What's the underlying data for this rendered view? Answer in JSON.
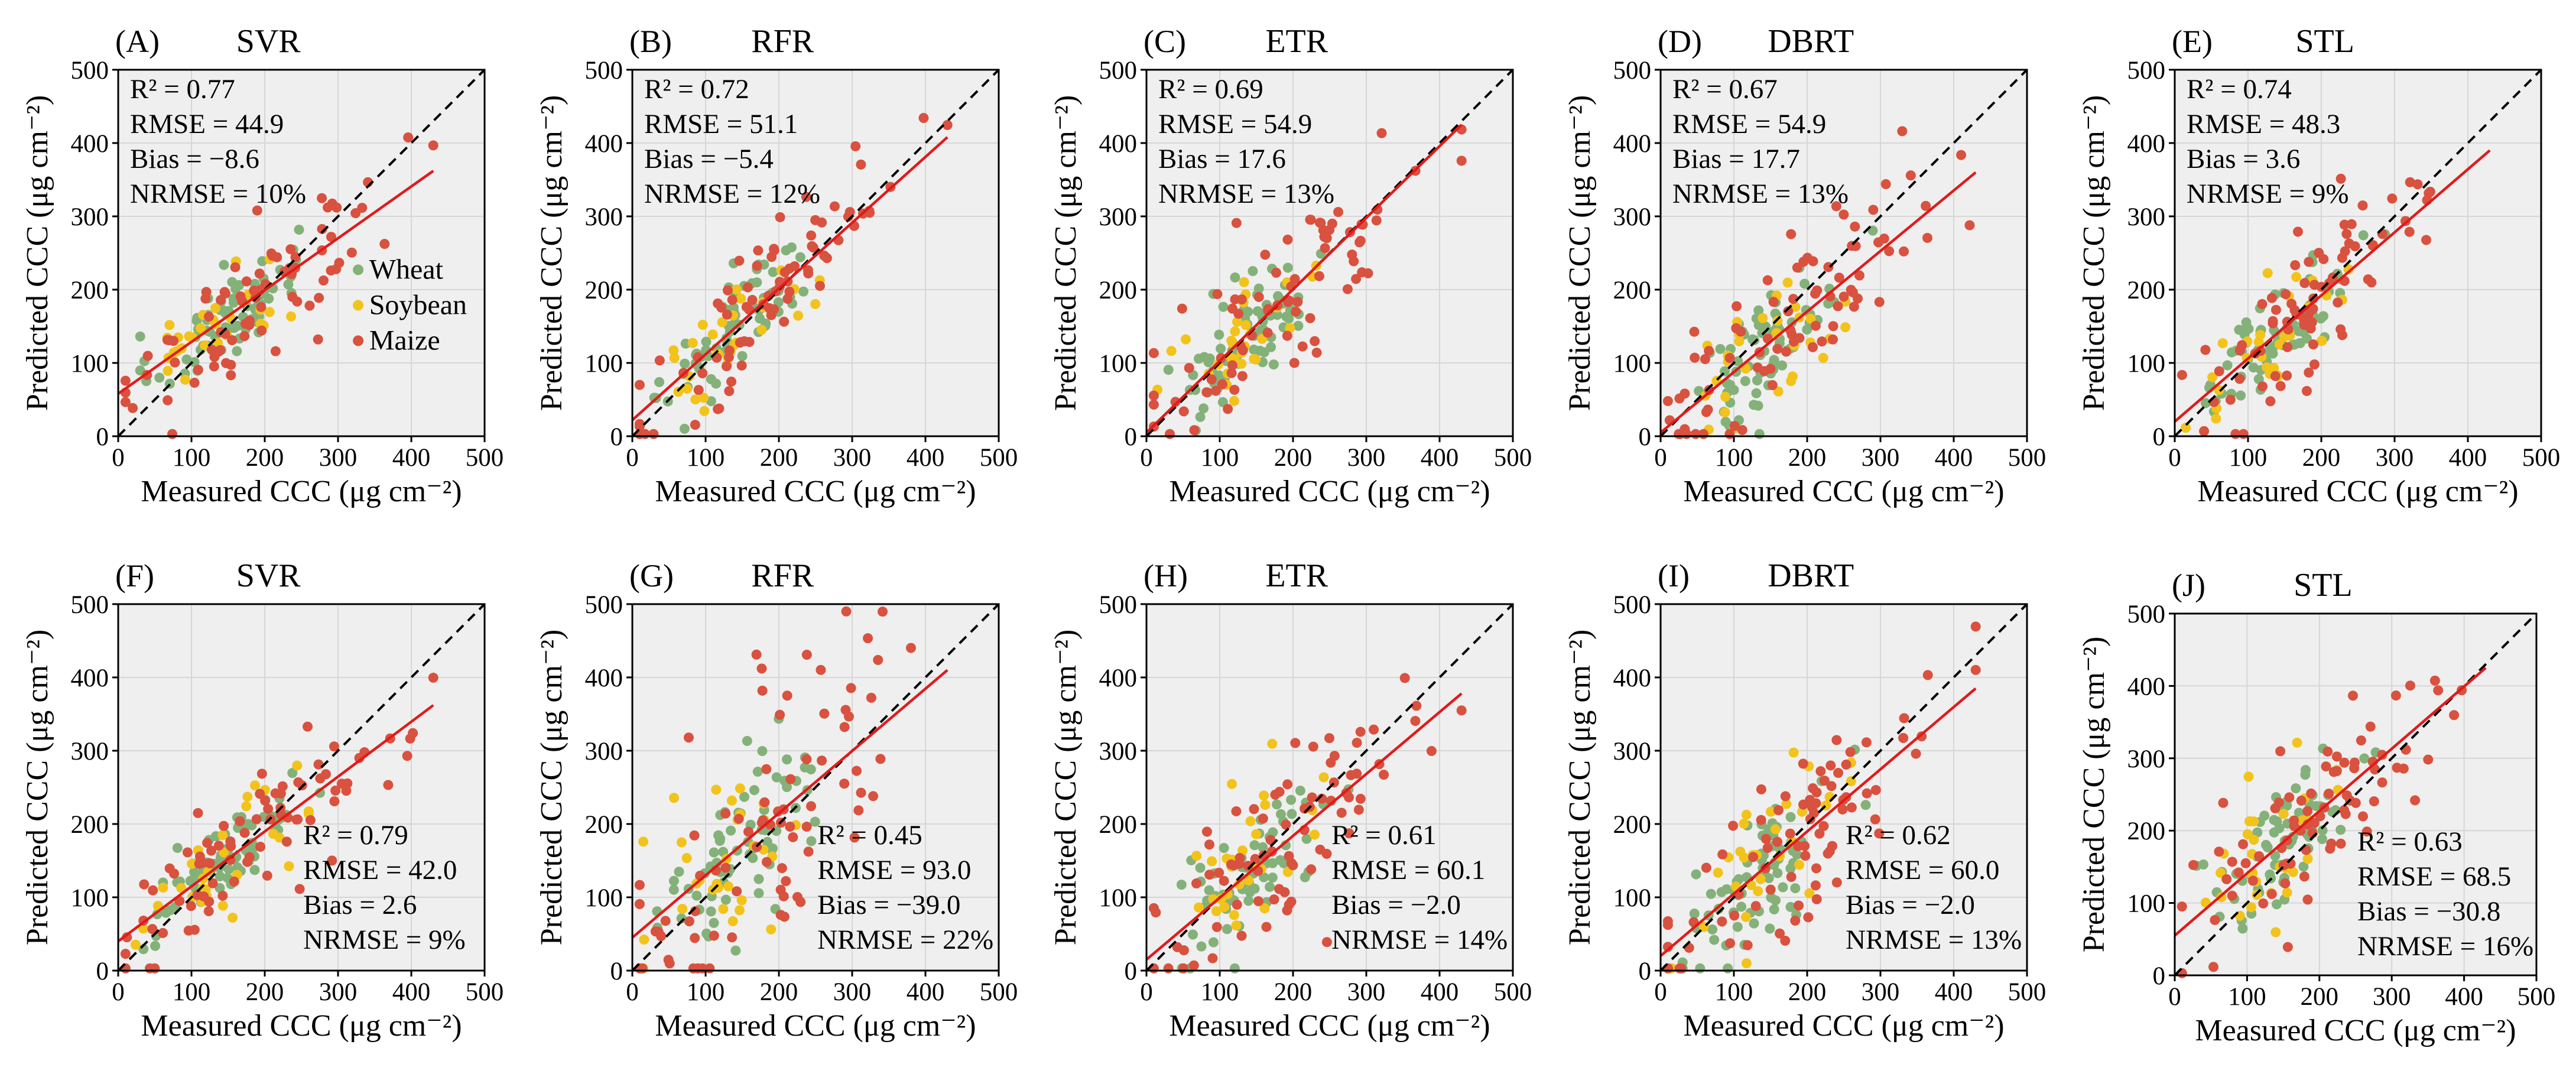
{
  "figure": {
    "legend": [
      {
        "label": "Wheat",
        "color": "#84b179"
      },
      {
        "label": "Soybean",
        "color": "#f2c31b"
      },
      {
        "label": "Maize",
        "color": "#d9513f"
      }
    ],
    "colors": {
      "background": "#efefef",
      "grid": "#d6d6d6",
      "fit_line": "#e01b1b",
      "one_to_one": "#000000",
      "Wheat": "#84b179",
      "Soybean": "#f2c31b",
      "Maize": "#d9513f"
    }
  },
  "chart_data": [
    {
      "panel_letter": "(A)",
      "title": "SVR",
      "type": "scatter",
      "xlabel": "Measured CCC (μg cm⁻²)",
      "ylabel": "Predicted CCC (μg cm⁻²)",
      "xlim": [
        0,
        500
      ],
      "ylim": [
        0,
        500
      ],
      "xticks": [
        "0",
        "100",
        "200",
        "300",
        "400",
        "500"
      ],
      "yticks": [
        "0",
        "100",
        "200",
        "300",
        "400",
        "500"
      ],
      "stats": [
        "R² = 0.77",
        "RMSE = 44.9",
        "Bias = −8.6",
        "NRMSE = 10%"
      ],
      "stats_position": "top-left",
      "legend_shown": true,
      "fit_line": {
        "x": [
          0,
          430
        ],
        "y": [
          58,
          362
        ]
      },
      "one_to_one": {
        "x": [
          0,
          500
        ],
        "y": [
          0,
          500
        ]
      }
    },
    {
      "panel_letter": "(B)",
      "title": "RFR",
      "type": "scatter",
      "xlabel": "Measured CCC (μg cm⁻²)",
      "ylabel": "Predicted CCC (μg cm⁻²)",
      "xlim": [
        0,
        500
      ],
      "ylim": [
        0,
        500
      ],
      "xticks": [
        "0",
        "100",
        "200",
        "300",
        "400",
        "500"
      ],
      "yticks": [
        "0",
        "100",
        "200",
        "300",
        "400",
        "500"
      ],
      "stats": [
        "R² = 0.72",
        "RMSE = 51.1",
        "Bias = −5.4",
        "NRMSE = 12%"
      ],
      "stats_position": "top-left",
      "legend_shown": false,
      "fit_line": {
        "x": [
          0,
          430
        ],
        "y": [
          22,
          408
        ]
      },
      "one_to_one": {
        "x": [
          0,
          500
        ],
        "y": [
          0,
          500
        ]
      }
    },
    {
      "panel_letter": "(C)",
      "title": "ETR",
      "type": "scatter",
      "xlabel": "Measured CCC (μg cm⁻²)",
      "ylabel": "Predicted CCC (μg cm⁻²)",
      "xlim": [
        0,
        500
      ],
      "ylim": [
        0,
        500
      ],
      "xticks": [
        "0",
        "100",
        "200",
        "300",
        "400",
        "500"
      ],
      "yticks": [
        "0",
        "100",
        "200",
        "300",
        "400",
        "500"
      ],
      "stats": [
        "R² = 0.69",
        "RMSE = 54.9",
        "Bias = 17.6",
        "NRMSE = 13%"
      ],
      "stats_position": "top-left",
      "legend_shown": false,
      "fit_line": {
        "x": [
          0,
          430
        ],
        "y": [
          5,
          425
        ]
      },
      "one_to_one": {
        "x": [
          0,
          500
        ],
        "y": [
          0,
          500
        ]
      }
    },
    {
      "panel_letter": "(D)",
      "title": "DBRT",
      "type": "scatter",
      "xlabel": "Measured CCC (μg cm⁻²)",
      "ylabel": "Predicted CCC (μg cm⁻²)",
      "xlim": [
        0,
        500
      ],
      "ylim": [
        0,
        500
      ],
      "xticks": [
        "0",
        "100",
        "200",
        "300",
        "400",
        "500"
      ],
      "yticks": [
        "0",
        "100",
        "200",
        "300",
        "400",
        "500"
      ],
      "stats": [
        "R² = 0.67",
        "RMSE = 54.9",
        "Bias = 17.7",
        "NRMSE = 13%"
      ],
      "stats_position": "top-left",
      "legend_shown": false,
      "fit_line": {
        "x": [
          0,
          430
        ],
        "y": [
          5,
          360
        ]
      },
      "one_to_one": {
        "x": [
          0,
          500
        ],
        "y": [
          0,
          500
        ]
      }
    },
    {
      "panel_letter": "(E)",
      "title": "STL",
      "type": "scatter",
      "xlabel": "Measured CCC (μg cm⁻²)",
      "ylabel": "Predicted CCC (μg cm⁻²)",
      "xlim": [
        0,
        500
      ],
      "ylim": [
        0,
        500
      ],
      "xticks": [
        "0",
        "100",
        "200",
        "300",
        "400",
        "500"
      ],
      "yticks": [
        "0",
        "100",
        "200",
        "300",
        "400",
        "500"
      ],
      "stats": [
        "R² = 0.74",
        "RMSE = 48.3",
        "Bias = 3.6",
        "NRMSE = 9%"
      ],
      "stats_position": "top-left",
      "legend_shown": false,
      "fit_line": {
        "x": [
          0,
          430
        ],
        "y": [
          20,
          390
        ]
      },
      "one_to_one": {
        "x": [
          0,
          500
        ],
        "y": [
          0,
          500
        ]
      }
    },
    {
      "panel_letter": "(F)",
      "title": "SVR",
      "type": "scatter",
      "xlabel": "Measured CCC (μg cm⁻²)",
      "ylabel": "Predicted CCC (μg cm⁻²)",
      "xlim": [
        0,
        500
      ],
      "ylim": [
        0,
        500
      ],
      "xticks": [
        "0",
        "100",
        "200",
        "300",
        "400",
        "500"
      ],
      "yticks": [
        "0",
        "100",
        "200",
        "300",
        "400",
        "500"
      ],
      "stats": [
        "R² = 0.79",
        "RMSE = 42.0",
        "Bias = 2.6",
        "NRMSE = 9%"
      ],
      "stats_position": "bottom-right",
      "legend_shown": false,
      "fit_line": {
        "x": [
          0,
          430
        ],
        "y": [
          40,
          362
        ]
      },
      "one_to_one": {
        "x": [
          0,
          500
        ],
        "y": [
          0,
          500
        ]
      }
    },
    {
      "panel_letter": "(G)",
      "title": "RFR",
      "type": "scatter",
      "xlabel": "Measured CCC (μg cm⁻²)",
      "ylabel": "Predicted CCC (μg cm⁻²)",
      "xlim": [
        0,
        500
      ],
      "ylim": [
        0,
        500
      ],
      "xticks": [
        "0",
        "100",
        "200",
        "300",
        "400",
        "500"
      ],
      "yticks": [
        "0",
        "100",
        "200",
        "300",
        "400",
        "500"
      ],
      "stats": [
        "R² = 0.45",
        "RMSE = 93.0",
        "Bias = −39.0",
        "NRMSE = 22%"
      ],
      "stats_position": "bottom-right",
      "legend_shown": false,
      "fit_line": {
        "x": [
          0,
          430
        ],
        "y": [
          45,
          410
        ]
      },
      "one_to_one": {
        "x": [
          0,
          500
        ],
        "y": [
          0,
          500
        ]
      }
    },
    {
      "panel_letter": "(H)",
      "title": "ETR",
      "type": "scatter",
      "xlabel": "Measured CCC (μg cm⁻²)",
      "ylabel": "Predicted CCC (μg cm⁻²)",
      "xlim": [
        0,
        500
      ],
      "ylim": [
        0,
        500
      ],
      "xticks": [
        "0",
        "100",
        "200",
        "300",
        "400",
        "500"
      ],
      "yticks": [
        "0",
        "100",
        "200",
        "300",
        "400",
        "500"
      ],
      "stats": [
        "R² = 0.61",
        "RMSE = 60.1",
        "Bias = −2.0",
        "NRMSE = 14%"
      ],
      "stats_position": "bottom-right",
      "legend_shown": false,
      "fit_line": {
        "x": [
          0,
          430
        ],
        "y": [
          15,
          378
        ]
      },
      "one_to_one": {
        "x": [
          0,
          500
        ],
        "y": [
          0,
          500
        ]
      }
    },
    {
      "panel_letter": "(I)",
      "title": "DBRT",
      "type": "scatter",
      "xlabel": "Measured CCC (μg cm⁻²)",
      "ylabel": "Predicted CCC (μg cm⁻²)",
      "xlim": [
        0,
        500
      ],
      "ylim": [
        0,
        500
      ],
      "xticks": [
        "0",
        "100",
        "200",
        "300",
        "400",
        "500"
      ],
      "yticks": [
        "0",
        "100",
        "200",
        "300",
        "400",
        "500"
      ],
      "stats": [
        "R² = 0.62",
        "RMSE = 60.0",
        "Bias = −2.0",
        "NRMSE = 13%"
      ],
      "stats_position": "bottom-right",
      "legend_shown": false,
      "fit_line": {
        "x": [
          0,
          430
        ],
        "y": [
          20,
          385
        ]
      },
      "one_to_one": {
        "x": [
          0,
          500
        ],
        "y": [
          0,
          500
        ]
      }
    },
    {
      "panel_letter": "(J)",
      "title": "STL",
      "type": "scatter",
      "xlabel": "Measured CCC (μg cm⁻²)",
      "ylabel": "Predicted CCC (μg cm⁻²)",
      "xlim": [
        0,
        500
      ],
      "ylim": [
        0,
        500
      ],
      "xticks": [
        "0",
        "100",
        "200",
        "300",
        "400",
        "500"
      ],
      "yticks": [
        "0",
        "100",
        "200",
        "300",
        "400",
        "500"
      ],
      "stats": [
        "R² = 0.63",
        "RMSE = 68.5",
        "Bias = −30.8",
        "NRMSE = 16%"
      ],
      "stats_position": "bottom-right",
      "legend_shown": false,
      "fit_line": {
        "x": [
          0,
          430
        ],
        "y": [
          55,
          425
        ]
      },
      "one_to_one": {
        "x": [
          0,
          500
        ],
        "y": [
          0,
          500
        ]
      }
    }
  ]
}
